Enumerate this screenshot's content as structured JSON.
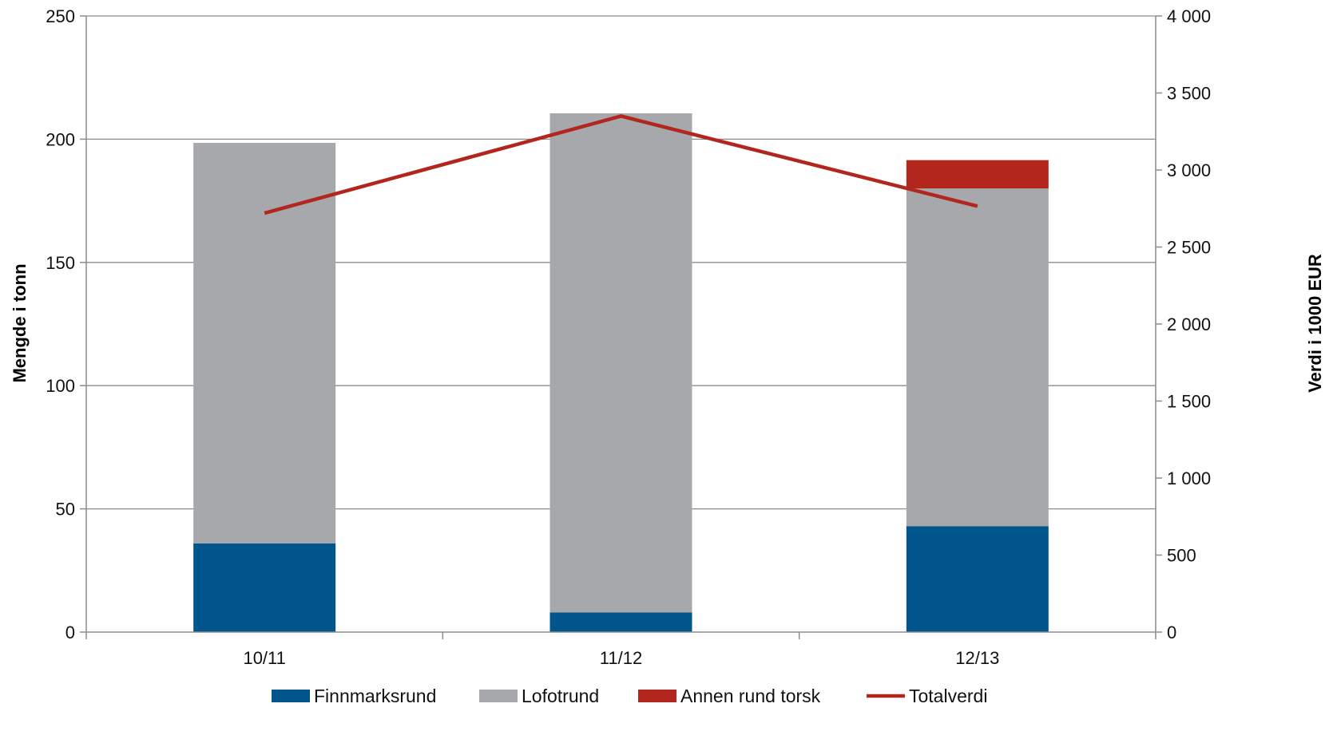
{
  "chart_data": {
    "type": "bar",
    "stacked": true,
    "categories": [
      "10/11",
      "11/12",
      "12/13"
    ],
    "series": [
      {
        "name": "Finnmarksrund",
        "type": "bar",
        "axis": "left",
        "color": "#00558c",
        "values": [
          36,
          8,
          43
        ]
      },
      {
        "name": "Lofotrund",
        "type": "bar",
        "axis": "left",
        "color": "#a7a8ab",
        "values": [
          162.5,
          202.5,
          137
        ]
      },
      {
        "name": "Annen rund torsk",
        "type": "bar",
        "axis": "left",
        "color": "#b3261e",
        "values": [
          0,
          0,
          11.5
        ]
      },
      {
        "name": "Totalverdi",
        "type": "line",
        "axis": "right",
        "color": "#b3261e",
        "values": [
          2720,
          3350,
          2765
        ]
      }
    ],
    "ylabel": "Mengde i tonn",
    "y2label": "Verdi i 1000 EUR",
    "ylim": [
      0,
      250
    ],
    "y2lim": [
      0,
      4000
    ],
    "yticks": [
      "0",
      "50",
      "100",
      "150",
      "200",
      "250"
    ],
    "y2ticks": [
      "0",
      "500",
      "1 000",
      "1 500",
      "2 000",
      "2 500",
      "3 000",
      "3 500",
      "4 000"
    ],
    "grid": true,
    "legend_position": "bottom"
  }
}
